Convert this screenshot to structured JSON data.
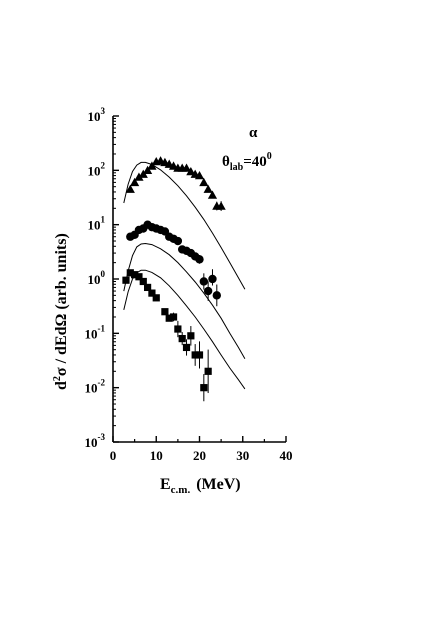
{
  "chart_data": {
    "type": "scatter",
    "title": "",
    "xlabel": {
      "main": "E",
      "sub": "c.m.",
      "rest": "(MeV)"
    },
    "ylabel": {
      "d": "d",
      "sup": "2",
      "rest": "σ / dEdΩ  (arb. units)"
    },
    "xlim": [
      0,
      40
    ],
    "ylim": [
      0.001,
      1000
    ],
    "yscale": "log",
    "xticks": [
      0,
      10,
      20,
      30,
      40
    ],
    "xtick_labels": [
      "0",
      "10",
      "20",
      "30",
      "40"
    ],
    "yticks": [
      0.001,
      0.01,
      0.1,
      1,
      10,
      100,
      1000
    ],
    "ytick_labels": [
      {
        "base": "10",
        "exp": "-3"
      },
      {
        "base": "10",
        "exp": "-2"
      },
      {
        "base": "10",
        "exp": "-1"
      },
      {
        "base": "10",
        "exp": "0"
      },
      {
        "base": "10",
        "exp": "1"
      },
      {
        "base": "10",
        "exp": "2"
      },
      {
        "base": "10",
        "exp": "3"
      }
    ],
    "annotations": {
      "particle": "α",
      "angle": {
        "theta": "θ",
        "sub": "lab",
        "eq": "=40",
        "sup": "0"
      }
    },
    "grid": false,
    "legend": "none",
    "series": [
      {
        "marker": "triangle",
        "points": [
          [
            4,
            45
          ],
          [
            5,
            60
          ],
          [
            6,
            75
          ],
          [
            7,
            85
          ],
          [
            8,
            100
          ],
          [
            9,
            120
          ],
          [
            10,
            145
          ],
          [
            11,
            150
          ],
          [
            12,
            140
          ],
          [
            13,
            130
          ],
          [
            14,
            120
          ],
          [
            15,
            110
          ],
          [
            16,
            110
          ],
          [
            17,
            110
          ],
          [
            18,
            95
          ],
          [
            19,
            85
          ],
          [
            20,
            80
          ],
          [
            21,
            60
          ],
          [
            22,
            45
          ],
          [
            23,
            35
          ],
          [
            24,
            22
          ],
          [
            25,
            22
          ]
        ],
        "errors": [
          [
            0.03,
            0.03
          ],
          [
            0.03,
            0.03
          ],
          [
            0.03,
            0.03
          ],
          [
            0.03,
            0.03
          ],
          [
            0.03,
            0.03
          ],
          [
            0.03,
            0.03
          ],
          [
            0.03,
            0.03
          ],
          [
            0.03,
            0.03
          ],
          [
            0.03,
            0.03
          ],
          [
            0.03,
            0.03
          ],
          [
            0.03,
            0.03
          ],
          [
            0.03,
            0.03
          ],
          [
            0.03,
            0.03
          ],
          [
            0.03,
            0.03
          ],
          [
            0.03,
            0.03
          ],
          [
            0.03,
            0.03
          ],
          [
            0.03,
            0.03
          ],
          [
            0.03,
            0.03
          ],
          [
            0.03,
            0.03
          ],
          [
            0.04,
            0.04
          ],
          [
            0.08,
            0.08
          ],
          [
            0.09,
            0.09
          ]
        ],
        "curve": [
          [
            2.5,
            25
          ],
          [
            3.5,
            55
          ],
          [
            4.5,
            95
          ],
          [
            5.5,
            125
          ],
          [
            6.5,
            140
          ],
          [
            7.5,
            140
          ],
          [
            9,
            128
          ],
          [
            11,
            102
          ],
          [
            13,
            75
          ],
          [
            15,
            52
          ],
          [
            17,
            34
          ],
          [
            19,
            21
          ],
          [
            21,
            12.5
          ],
          [
            23,
            7
          ],
          [
            25,
            3.8
          ],
          [
            27,
            2
          ],
          [
            29,
            1.05
          ],
          [
            30.5,
            0.65
          ]
        ]
      },
      {
        "marker": "circle",
        "points": [
          [
            4,
            6
          ],
          [
            5,
            6.5
          ],
          [
            6,
            8
          ],
          [
            7,
            8.5
          ],
          [
            8,
            10
          ],
          [
            9,
            9
          ],
          [
            10,
            8.5
          ],
          [
            11,
            8
          ],
          [
            12,
            7.5
          ],
          [
            13,
            6
          ],
          [
            14,
            5.5
          ],
          [
            15,
            5
          ],
          [
            16,
            3.5
          ],
          [
            17,
            3.3
          ],
          [
            18,
            3
          ],
          [
            19,
            2.6
          ],
          [
            20,
            2.3
          ],
          [
            21,
            0.9
          ],
          [
            22,
            0.6
          ],
          [
            23,
            1
          ],
          [
            24,
            0.5
          ]
        ],
        "errors": [
          [
            0.03,
            0.03
          ],
          [
            0.03,
            0.03
          ],
          [
            0.03,
            0.03
          ],
          [
            0.03,
            0.03
          ],
          [
            0.03,
            0.03
          ],
          [
            0.03,
            0.03
          ],
          [
            0.03,
            0.03
          ],
          [
            0.03,
            0.03
          ],
          [
            0.03,
            0.03
          ],
          [
            0.03,
            0.03
          ],
          [
            0.03,
            0.03
          ],
          [
            0.03,
            0.03
          ],
          [
            0.03,
            0.03
          ],
          [
            0.03,
            0.03
          ],
          [
            0.03,
            0.03
          ],
          [
            0.03,
            0.03
          ],
          [
            0.08,
            0.08
          ],
          [
            0.15,
            0.15
          ],
          [
            0.18,
            0.18
          ],
          [
            0.12,
            0.18
          ],
          [
            0.2,
            0.2
          ]
        ],
        "curve": [
          [
            2.5,
            0.6
          ],
          [
            3.5,
            1.4
          ],
          [
            4.5,
            2.7
          ],
          [
            5.5,
            3.9
          ],
          [
            6.5,
            4.4
          ],
          [
            7.5,
            4.5
          ],
          [
            9,
            4.3
          ],
          [
            11,
            3.6
          ],
          [
            13,
            2.8
          ],
          [
            15,
            2
          ],
          [
            17,
            1.35
          ],
          [
            19,
            0.88
          ],
          [
            21,
            0.55
          ],
          [
            23,
            0.33
          ],
          [
            25,
            0.19
          ],
          [
            27,
            0.1
          ],
          [
            29,
            0.055
          ],
          [
            30.5,
            0.034
          ]
        ]
      },
      {
        "marker": "square",
        "points": [
          [
            3,
            0.95
          ],
          [
            4,
            1.3
          ],
          [
            5,
            1.2
          ],
          [
            6,
            1.1
          ],
          [
            7,
            0.9
          ],
          [
            8,
            0.7
          ],
          [
            9,
            0.55
          ],
          [
            10,
            0.45
          ],
          [
            12,
            0.25
          ],
          [
            13,
            0.19
          ],
          [
            14,
            0.2
          ],
          [
            15,
            0.12
          ],
          [
            16,
            0.08
          ],
          [
            17,
            0.055
          ],
          [
            18,
            0.09
          ],
          [
            19,
            0.04
          ],
          [
            20,
            0.04
          ],
          [
            21,
            0.01
          ],
          [
            22,
            0.02
          ]
        ],
        "errors": [
          [
            0.03,
            0.03
          ],
          [
            0.03,
            0.03
          ],
          [
            0.03,
            0.03
          ],
          [
            0.03,
            0.03
          ],
          [
            0.03,
            0.03
          ],
          [
            0.03,
            0.03
          ],
          [
            0.03,
            0.03
          ],
          [
            0.03,
            0.03
          ],
          [
            0.03,
            0.03
          ],
          [
            0.03,
            0.03
          ],
          [
            0.08,
            0.08
          ],
          [
            0.15,
            0.15
          ],
          [
            0.12,
            0.12
          ],
          [
            0.15,
            0.15
          ],
          [
            0.18,
            0.18
          ],
          [
            0.2,
            0.2
          ],
          [
            0.25,
            0.25
          ],
          [
            0.25,
            0.25
          ],
          [
            0.4,
            0.4
          ]
        ],
        "curve": [
          [
            2.5,
            0.27
          ],
          [
            3.5,
            0.58
          ],
          [
            4.5,
            1.0
          ],
          [
            5.5,
            1.3
          ],
          [
            6.5,
            1.45
          ],
          [
            7.5,
            1.45
          ],
          [
            9,
            1.32
          ],
          [
            11,
            1.05
          ],
          [
            13,
            0.75
          ],
          [
            15,
            0.5
          ],
          [
            17,
            0.32
          ],
          [
            19,
            0.2
          ],
          [
            21,
            0.12
          ],
          [
            23,
            0.07
          ],
          [
            25,
            0.04
          ],
          [
            27,
            0.023
          ],
          [
            29,
            0.014
          ],
          [
            30.5,
            0.0095
          ]
        ]
      }
    ]
  }
}
